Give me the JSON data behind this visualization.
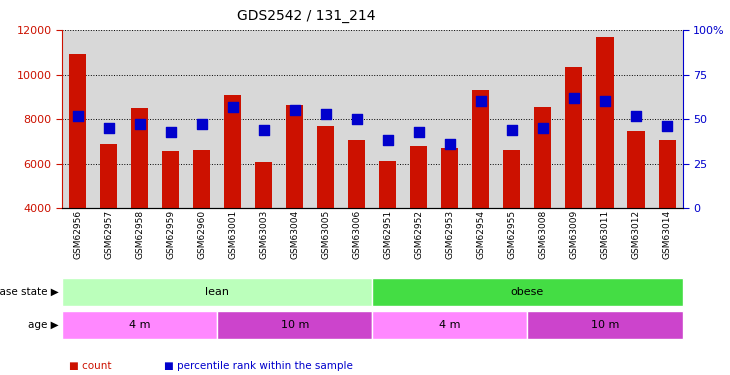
{
  "title": "GDS2542 / 131_214",
  "samples": [
    "GSM62956",
    "GSM62957",
    "GSM62958",
    "GSM62959",
    "GSM62960",
    "GSM63001",
    "GSM63003",
    "GSM63004",
    "GSM63005",
    "GSM63006",
    "GSM62951",
    "GSM62952",
    "GSM62953",
    "GSM62954",
    "GSM62955",
    "GSM63008",
    "GSM63009",
    "GSM63011",
    "GSM63012",
    "GSM63014"
  ],
  "counts": [
    10900,
    6900,
    8500,
    6550,
    6600,
    9100,
    6050,
    8650,
    7700,
    7050,
    6100,
    6800,
    6700,
    9300,
    6600,
    8550,
    10350,
    11700,
    7450,
    7050
  ],
  "percentile_ranks": [
    52,
    45,
    47,
    43,
    47,
    57,
    44,
    55,
    53,
    50,
    38,
    43,
    36,
    60,
    44,
    45,
    62,
    60,
    52,
    46
  ],
  "ylim_left": [
    4000,
    12000
  ],
  "ylim_right": [
    0,
    100
  ],
  "yticks_left": [
    4000,
    6000,
    8000,
    10000,
    12000
  ],
  "yticks_right": [
    0,
    25,
    50,
    75,
    100
  ],
  "bar_color": "#cc1100",
  "dot_color": "#0000cc",
  "bg_color": "#d8d8d8",
  "disease_groups": [
    {
      "label": "lean",
      "start": 0,
      "end": 10,
      "color": "#bbffbb"
    },
    {
      "label": "obese",
      "start": 10,
      "end": 20,
      "color": "#44dd44"
    }
  ],
  "age_groups": [
    {
      "label": "4 m",
      "start": 0,
      "end": 5,
      "color": "#ff88ff"
    },
    {
      "label": "10 m",
      "start": 5,
      "end": 10,
      "color": "#cc44cc"
    },
    {
      "label": "4 m",
      "start": 10,
      "end": 15,
      "color": "#ff88ff"
    },
    {
      "label": "10 m",
      "start": 15,
      "end": 20,
      "color": "#cc44cc"
    }
  ],
  "legend_items": [
    {
      "label": "count",
      "color": "#cc1100"
    },
    {
      "label": "percentile rank within the sample",
      "color": "#0000cc"
    }
  ],
  "bar_width": 0.55,
  "dot_size": 55,
  "figsize": [
    7.3,
    3.75
  ],
  "dpi": 100
}
